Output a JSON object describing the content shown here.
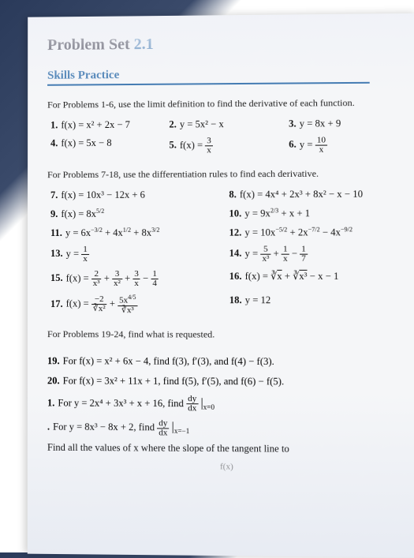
{
  "title_prefix": "Problem Set ",
  "title_num": "2.1",
  "skills_label": "Skills Practice",
  "instr1": "For Problems 1-6, use the limit definition to find the derivative of each function.",
  "set1": {
    "p1": "f(x) = x² + 2x − 7",
    "p2": "y = 5x² − x",
    "p3": "y = 8x + 9",
    "p4": "f(x) = 5x − 8",
    "p5a": "f(x) = ",
    "p5f_n": "3",
    "p5f_d": "x",
    "p6a": "y = ",
    "p6f_n": "10",
    "p6f_d": "x"
  },
  "instr2": "For Problems 7-18, use the differentiation rules to find each derivative.",
  "set2": {
    "p7": "f(x) = 10x³ − 12x + 6",
    "p8": "f(x) = 4x⁴ + 2x³ + 8x² − x − 10",
    "p9": "f(x) = 8x",
    "p9e": "5/2",
    "p10": "y = 9x",
    "p10e": "2/3",
    "p10b": " + x + 1",
    "p11": "y = 6x",
    "p11e1": "−3/2",
    "p11m": " + 4x",
    "p11e2": "1/2",
    "p11m2": " + 8x",
    "p11e3": "3/2",
    "p12": "y = 10x",
    "p12e1": "−5/2",
    "p12m": " + 2x",
    "p12e2": "−7/2",
    "p12m2": " − 4x",
    "p12e3": "−9/2",
    "p13a": "y = ",
    "p13fn": "1",
    "p13fd": "x",
    "p14a": "y = ",
    "p14f1n": "5",
    "p14f1d": "x³",
    "p14f2n": "1",
    "p14f2d": "x",
    "p14f3n": "1",
    "p14f3d": "7",
    "p15a": "f(x) = ",
    "p15f1n": "2",
    "p15f1d": "x³",
    "p15f2n": "3",
    "p15f2d": "x²",
    "p15f3n": "3",
    "p15f3d": "x",
    "p15f4n": "1",
    "p15f4d": "4",
    "p16a": "f(x) = ",
    "p16b": "x",
    "p16c": "x³",
    "p16d": " − x − 1",
    "p17a": "f(x) = ",
    "p17f1n": "−2",
    "p17f1d": "∛x²",
    "p17f2n": "5x",
    "p17f2nexp": "4/5",
    "p17f2d": "∛x³",
    "p18": "y = 12"
  },
  "instr3": "For Problems 19-24, find what is requested.",
  "set3": {
    "p19": "For f(x) = x² + 6x − 4, find f(3), f′(3), and f(4) − f(3).",
    "p20": "For f(x) = 3x² + 11x + 1, find f(5), f′(5), and f(6) − f(5).",
    "p21a": "For y = 2x⁴ + 3x³ + x + 16, find ",
    "p21fn": "dy",
    "p21fd": "dx",
    "p21bar": "x=0",
    "p22a": "For y = 8x³ − 8x + 2, find ",
    "p22fn": "dy",
    "p22fd": "dx",
    "p22bar": "x=−1",
    "p23": "Find all the values of x where the slope of the tangent line to"
  },
  "cutoff": "f(x)   "
}
